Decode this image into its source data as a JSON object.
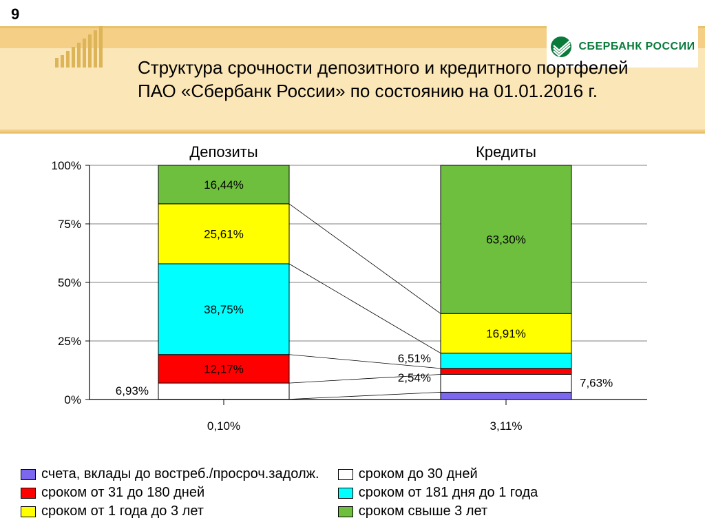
{
  "page_number": "9",
  "logo_text": "СБЕРБАНК РОССИИ",
  "title": "Структура срочности депозитного и кредитного портфелей ПАО «Сбербанк России» по состоянию на 01.01.2016 г.",
  "chart": {
    "type": "stacked-bar",
    "ylim": [
      0,
      100
    ],
    "ytick_step": 25,
    "y_ticks": [
      "0%",
      "25%",
      "50%",
      "75%",
      "100%"
    ],
    "grid_color": "#000000",
    "background_color": "#ffffff",
    "bar_labels": [
      "Депозиты",
      "Кредиты"
    ],
    "label_fontsize": 22,
    "value_fontsize": 17,
    "bars": [
      {
        "below_label": "0,10%",
        "left_label": "6,93%",
        "segments": [
          {
            "key": "ondemand",
            "value": 0.1,
            "label": ""
          },
          {
            "key": "upto30",
            "value": 6.93,
            "label": ""
          },
          {
            "key": "31to180",
            "value": 12.17,
            "label": "12,17%"
          },
          {
            "key": "181to1y",
            "value": 38.75,
            "label": "38,75%"
          },
          {
            "key": "1to3y",
            "value": 25.61,
            "label": "25,61%"
          },
          {
            "key": "over3y",
            "value": 16.44,
            "label": "16,44%"
          }
        ]
      },
      {
        "below_label": "3,11%",
        "right_label": "7,63%",
        "left_labels": [
          "6,51%",
          "2,54%"
        ],
        "segments": [
          {
            "key": "ondemand",
            "value": 3.11,
            "label": ""
          },
          {
            "key": "upto30",
            "value": 7.63,
            "label": ""
          },
          {
            "key": "31to180",
            "value": 2.54,
            "label": ""
          },
          {
            "key": "181to1y",
            "value": 6.51,
            "label": ""
          },
          {
            "key": "1to3y",
            "value": 16.91,
            "label": "16,91%"
          },
          {
            "key": "over3y",
            "value": 63.3,
            "label": "63,30%"
          }
        ]
      }
    ],
    "colors": {
      "ondemand": "#7b68ee",
      "upto30": "#ffffff",
      "31to180": "#ff0000",
      "181to1y": "#00ffff",
      "1to3y": "#ffff00",
      "over3y": "#6fbf3f"
    },
    "legend": [
      {
        "key": "ondemand",
        "label": "счета, вклады до востреб./просроч.задолж."
      },
      {
        "key": "upto30",
        "label": "сроком до 30 дней"
      },
      {
        "key": "31to180",
        "label": "сроком от 31 до 180 дней"
      },
      {
        "key": "181to1y",
        "label": "сроком от 181 дня до 1 года"
      },
      {
        "key": "1to3y",
        "label": "сроком от 1 года до 3 лет"
      },
      {
        "key": "over3y",
        "label": "сроком свыше 3 лет"
      }
    ]
  }
}
